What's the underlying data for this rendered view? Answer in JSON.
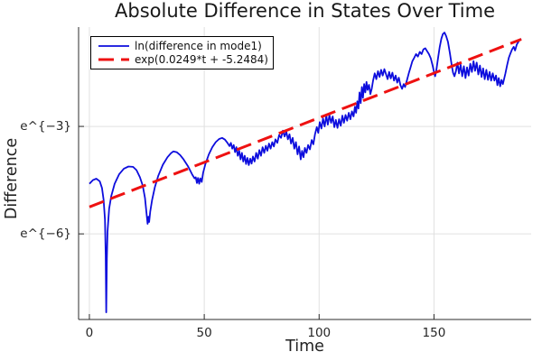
{
  "chart_data": {
    "type": "line",
    "title": "Absolute Difference in States Over Time",
    "xlabel": "Time",
    "ylabel": "Difference",
    "grid": true,
    "legend_position": "top-left",
    "xlim": [
      -4.7,
      192.3
    ],
    "ylim_ln": [
      -8.39,
      -0.227
    ],
    "x_ticks": [
      {
        "value": 0,
        "label": "0"
      },
      {
        "value": 50,
        "label": "50"
      },
      {
        "value": 100,
        "label": "100"
      },
      {
        "value": 150,
        "label": "150"
      }
    ],
    "y_ticks": [
      {
        "value": -3,
        "label": "e^{−3}"
      },
      {
        "value": -6,
        "label": "e^{−6}"
      }
    ],
    "legend": {
      "entries": [
        {
          "label": "ln(difference in mode1)",
          "style": "solid",
          "color": "#0d0ddd"
        },
        {
          "label": "exp(0.0249*t + -5.2484)",
          "style": "dashed",
          "color": "#ee1111"
        }
      ]
    },
    "series": [
      {
        "name": "ln(difference in mode1)",
        "color": "#0d0ddd",
        "style": "solid",
        "points": [
          [
            0,
            -4.6
          ],
          [
            1.5,
            -4.5
          ],
          [
            3,
            -4.46
          ],
          [
            4.5,
            -4.53
          ],
          [
            5.5,
            -4.72
          ],
          [
            6.2,
            -5.05
          ],
          [
            6.8,
            -5.6
          ],
          [
            7.1,
            -6.6
          ],
          [
            7.35,
            -8.19
          ],
          [
            7.6,
            -6.7
          ],
          [
            7.9,
            -5.95
          ],
          [
            8.6,
            -5.3
          ],
          [
            9.5,
            -4.95
          ],
          [
            11,
            -4.6
          ],
          [
            13,
            -4.33
          ],
          [
            15,
            -4.18
          ],
          [
            17,
            -4.12
          ],
          [
            19,
            -4.13
          ],
          [
            20.5,
            -4.22
          ],
          [
            22,
            -4.42
          ],
          [
            23.2,
            -4.65
          ],
          [
            24.2,
            -5.0
          ],
          [
            25,
            -5.5
          ],
          [
            25.35,
            -5.72
          ],
          [
            25.7,
            -5.52
          ],
          [
            26,
            -5.67
          ],
          [
            26.5,
            -5.38
          ],
          [
            27.3,
            -5.05
          ],
          [
            28.5,
            -4.7
          ],
          [
            30,
            -4.38
          ],
          [
            32,
            -4.07
          ],
          [
            34,
            -3.86
          ],
          [
            35.5,
            -3.75
          ],
          [
            36.5,
            -3.7
          ],
          [
            38,
            -3.72
          ],
          [
            39.5,
            -3.8
          ],
          [
            41,
            -3.92
          ],
          [
            43,
            -4.12
          ],
          [
            44.8,
            -4.35
          ],
          [
            45.8,
            -4.45
          ],
          [
            46.3,
            -4.42
          ],
          [
            46.8,
            -4.58
          ],
          [
            47.3,
            -4.44
          ],
          [
            47.8,
            -4.6
          ],
          [
            48.3,
            -4.45
          ],
          [
            48.9,
            -4.55
          ],
          [
            49.5,
            -4.3
          ],
          [
            50.5,
            -4.05
          ],
          [
            52,
            -3.78
          ],
          [
            53.5,
            -3.58
          ],
          [
            55,
            -3.44
          ],
          [
            56.5,
            -3.35
          ],
          [
            57.8,
            -3.32
          ],
          [
            59,
            -3.37
          ],
          [
            60,
            -3.45
          ],
          [
            61,
            -3.55
          ],
          [
            61.6,
            -3.46
          ],
          [
            62.2,
            -3.62
          ],
          [
            62.8,
            -3.52
          ],
          [
            63.4,
            -3.72
          ],
          [
            64,
            -3.58
          ],
          [
            64.6,
            -3.82
          ],
          [
            65.2,
            -3.68
          ],
          [
            65.8,
            -3.92
          ],
          [
            66.4,
            -3.74
          ],
          [
            67,
            -3.98
          ],
          [
            67.6,
            -3.82
          ],
          [
            68.2,
            -4.05
          ],
          [
            68.8,
            -3.88
          ],
          [
            69.4,
            -4.08
          ],
          [
            70,
            -3.9
          ],
          [
            70.6,
            -4.04
          ],
          [
            71.2,
            -3.84
          ],
          [
            71.9,
            -3.98
          ],
          [
            72.6,
            -3.74
          ],
          [
            73.3,
            -3.9
          ],
          [
            74,
            -3.66
          ],
          [
            74.7,
            -3.82
          ],
          [
            75.4,
            -3.58
          ],
          [
            76.1,
            -3.74
          ],
          [
            76.8,
            -3.54
          ],
          [
            77.5,
            -3.68
          ],
          [
            78.2,
            -3.48
          ],
          [
            78.9,
            -3.62
          ],
          [
            79.6,
            -3.44
          ],
          [
            80.3,
            -3.56
          ],
          [
            81,
            -3.36
          ],
          [
            81.8,
            -3.46
          ],
          [
            82.6,
            -3.24
          ],
          [
            83.4,
            -3.32
          ],
          [
            84.2,
            -3.12
          ],
          [
            85,
            -3.28
          ],
          [
            85.7,
            -3.14
          ],
          [
            86.4,
            -3.36
          ],
          [
            87.1,
            -3.22
          ],
          [
            87.8,
            -3.48
          ],
          [
            88.5,
            -3.32
          ],
          [
            89.2,
            -3.62
          ],
          [
            89.9,
            -3.44
          ],
          [
            90.6,
            -3.78
          ],
          [
            91.3,
            -3.56
          ],
          [
            92,
            -3.92
          ],
          [
            92.6,
            -3.68
          ],
          [
            93.2,
            -3.86
          ],
          [
            93.8,
            -3.6
          ],
          [
            94.5,
            -3.74
          ],
          [
            95.2,
            -3.52
          ],
          [
            96,
            -3.64
          ],
          [
            96.8,
            -3.38
          ],
          [
            97.5,
            -3.5
          ],
          [
            98.2,
            -3.22
          ],
          [
            99,
            -3.02
          ],
          [
            99.6,
            -3.18
          ],
          [
            100.3,
            -2.88
          ],
          [
            101,
            -3.06
          ],
          [
            101.7,
            -2.78
          ],
          [
            102.4,
            -3.0
          ],
          [
            103.1,
            -2.7
          ],
          [
            103.8,
            -2.95
          ],
          [
            104.5,
            -2.68
          ],
          [
            105.2,
            -2.9
          ],
          [
            105.9,
            -2.72
          ],
          [
            106.6,
            -3.02
          ],
          [
            107.3,
            -2.82
          ],
          [
            108,
            -3.04
          ],
          [
            108.7,
            -2.8
          ],
          [
            109.4,
            -2.98
          ],
          [
            110.1,
            -2.7
          ],
          [
            110.8,
            -2.9
          ],
          [
            111.5,
            -2.68
          ],
          [
            112.2,
            -2.84
          ],
          [
            112.9,
            -2.62
          ],
          [
            113.6,
            -2.8
          ],
          [
            114.3,
            -2.58
          ],
          [
            115,
            -2.72
          ],
          [
            115.6,
            -2.45
          ],
          [
            116.1,
            -2.62
          ],
          [
            116.6,
            -2.3
          ],
          [
            117.1,
            -2.5
          ],
          [
            117.6,
            -2.05
          ],
          [
            118.1,
            -2.35
          ],
          [
            118.6,
            -1.9
          ],
          [
            119.1,
            -2.2
          ],
          [
            119.6,
            -1.82
          ],
          [
            120.1,
            -2.05
          ],
          [
            120.6,
            -1.76
          ],
          [
            121.1,
            -1.98
          ],
          [
            121.7,
            -1.84
          ],
          [
            122.3,
            -2.1
          ],
          [
            122.9,
            -1.95
          ],
          [
            123.5,
            -1.72
          ],
          [
            124.2,
            -1.52
          ],
          [
            124.9,
            -1.68
          ],
          [
            125.6,
            -1.46
          ],
          [
            126.3,
            -1.62
          ],
          [
            127,
            -1.42
          ],
          [
            127.7,
            -1.58
          ],
          [
            128.4,
            -1.4
          ],
          [
            129.1,
            -1.54
          ],
          [
            129.8,
            -1.68
          ],
          [
            130.5,
            -1.48
          ],
          [
            131.2,
            -1.66
          ],
          [
            131.9,
            -1.5
          ],
          [
            132.6,
            -1.72
          ],
          [
            133.3,
            -1.58
          ],
          [
            134,
            -1.78
          ],
          [
            134.7,
            -1.64
          ],
          [
            135.4,
            -1.85
          ],
          [
            136.1,
            -1.95
          ],
          [
            136.8,
            -1.82
          ],
          [
            137.4,
            -1.9
          ],
          [
            138.2,
            -1.72
          ],
          [
            139,
            -1.52
          ],
          [
            139.8,
            -1.35
          ],
          [
            140.6,
            -1.18
          ],
          [
            141.4,
            -1.08
          ],
          [
            142.2,
            -0.98
          ],
          [
            143,
            -1.05
          ],
          [
            143.8,
            -0.92
          ],
          [
            144.6,
            -0.98
          ],
          [
            145.4,
            -0.85
          ],
          [
            146.2,
            -0.82
          ],
          [
            147,
            -0.9
          ],
          [
            147.8,
            -0.98
          ],
          [
            148.6,
            -1.1
          ],
          [
            149.4,
            -1.3
          ],
          [
            150,
            -1.48
          ],
          [
            150.5,
            -1.6
          ],
          [
            151.1,
            -1.4
          ],
          [
            151.8,
            -1.08
          ],
          [
            152.5,
            -0.78
          ],
          [
            153.2,
            -0.55
          ],
          [
            153.9,
            -0.42
          ],
          [
            154.6,
            -0.38
          ],
          [
            155.3,
            -0.48
          ],
          [
            156.1,
            -0.64
          ],
          [
            156.9,
            -0.95
          ],
          [
            157.6,
            -1.25
          ],
          [
            158.3,
            -1.5
          ],
          [
            158.9,
            -1.6
          ],
          [
            159.6,
            -1.45
          ],
          [
            160.2,
            -1.22
          ],
          [
            160.9,
            -1.52
          ],
          [
            161.6,
            -1.28
          ],
          [
            162.3,
            -1.6
          ],
          [
            163,
            -1.32
          ],
          [
            163.7,
            -1.65
          ],
          [
            164.4,
            -1.35
          ],
          [
            165.1,
            -1.58
          ],
          [
            165.8,
            -1.25
          ],
          [
            166.5,
            -1.48
          ],
          [
            167.2,
            -1.18
          ],
          [
            167.9,
            -1.45
          ],
          [
            168.6,
            -1.22
          ],
          [
            169.3,
            -1.55
          ],
          [
            170,
            -1.3
          ],
          [
            170.7,
            -1.62
          ],
          [
            171.4,
            -1.38
          ],
          [
            172.1,
            -1.68
          ],
          [
            172.8,
            -1.42
          ],
          [
            173.5,
            -1.7
          ],
          [
            174.2,
            -1.48
          ],
          [
            174.9,
            -1.72
          ],
          [
            175.6,
            -1.52
          ],
          [
            176.3,
            -1.72
          ],
          [
            177,
            -1.58
          ],
          [
            177.6,
            -1.85
          ],
          [
            178.2,
            -1.65
          ],
          [
            178.8,
            -1.88
          ],
          [
            179.4,
            -1.7
          ],
          [
            180,
            -1.82
          ],
          [
            180.5,
            -1.68
          ],
          [
            181.1,
            -1.52
          ],
          [
            181.8,
            -1.3
          ],
          [
            182.6,
            -1.08
          ],
          [
            183.3,
            -0.96
          ],
          [
            184,
            -0.85
          ],
          [
            184.7,
            -0.78
          ],
          [
            185.3,
            -0.88
          ],
          [
            186,
            -0.72
          ],
          [
            186.7,
            -0.64
          ],
          [
            187.4,
            -0.58
          ],
          [
            187.9,
            -0.55
          ]
        ]
      },
      {
        "name": "exp(0.0249*t + -5.2484)",
        "color": "#ee1111",
        "style": "dashed",
        "slope": 0.0249,
        "intercept": -5.2484,
        "points": [
          [
            0,
            -5.2484
          ],
          [
            188,
            -0.5672
          ]
        ]
      }
    ]
  }
}
